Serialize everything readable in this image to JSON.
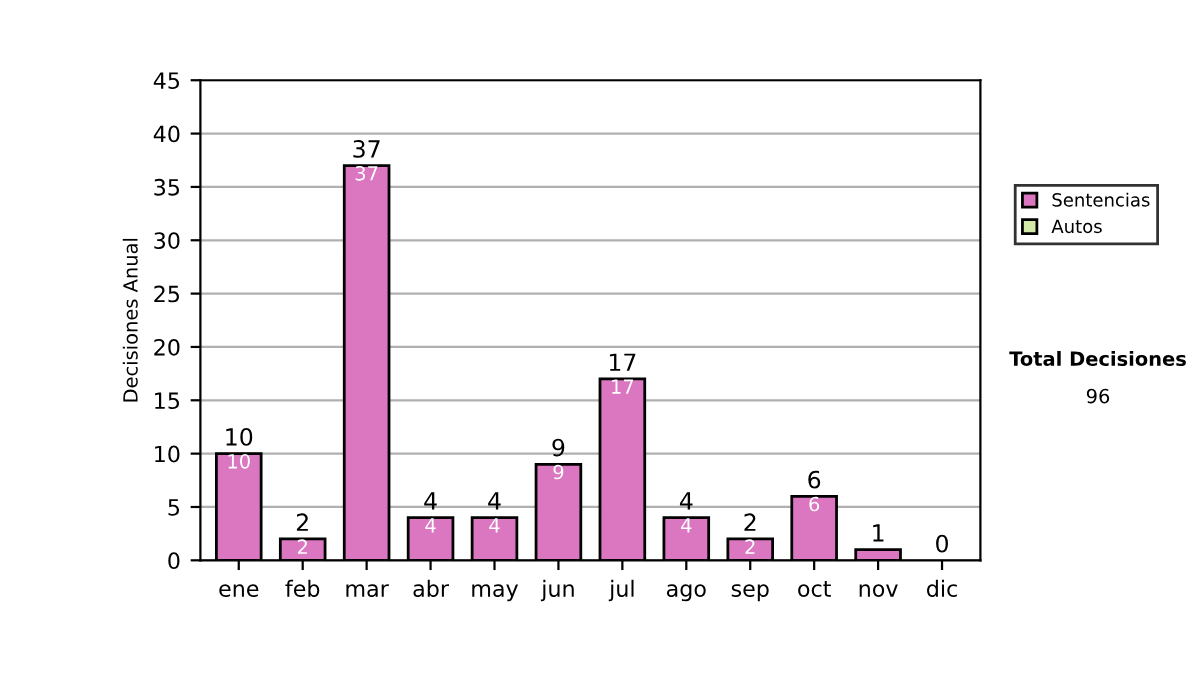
{
  "chart_data": {
    "type": "bar",
    "ylabel": "Decisiones Anual",
    "categories": [
      "ene",
      "feb",
      "mar",
      "abr",
      "may",
      "jun",
      "jul",
      "ago",
      "sep",
      "oct",
      "nov",
      "dic"
    ],
    "series": [
      {
        "name": "Sentencias",
        "color": "#db77c1",
        "values": [
          10,
          2,
          37,
          4,
          4,
          9,
          17,
          4,
          2,
          6,
          1,
          0
        ],
        "value_labels": [
          "10",
          "2",
          "37",
          "4",
          "4",
          "9",
          "17",
          "4",
          "2",
          "6",
          null,
          null
        ]
      },
      {
        "name": "Autos",
        "color": "#d4e8a8",
        "values": [
          0,
          0,
          0,
          0,
          0,
          0,
          0,
          0,
          0,
          0,
          0,
          0
        ]
      }
    ],
    "totals": [
      "10",
      "2",
      "37",
      "4",
      "4",
      "9",
      "17",
      "4",
      "2",
      "6",
      "1",
      "0"
    ],
    "ylim": [
      0,
      45
    ],
    "yticks": [
      0,
      5,
      10,
      15,
      20,
      25,
      30,
      35,
      40,
      45
    ],
    "grid": "y",
    "legend": "right",
    "annotations": [
      "Total Decisiones",
      "96"
    ]
  }
}
